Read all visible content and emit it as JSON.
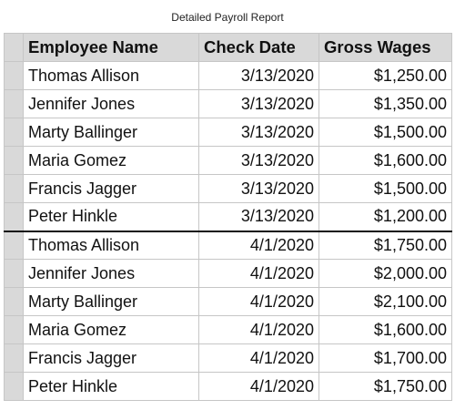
{
  "title": "Detailed Payroll Report",
  "table": {
    "headers": [
      "Employee Name",
      "Check Date",
      "Gross Wages"
    ],
    "rows": [
      [
        "Thomas Allison",
        "3/13/2020",
        "$1,250.00"
      ],
      [
        "Jennifer Jones",
        "3/13/2020",
        "$1,350.00"
      ],
      [
        "Marty Ballinger",
        "3/13/2020",
        "$1,500.00"
      ],
      [
        "Maria Gomez",
        "3/13/2020",
        "$1,600.00"
      ],
      [
        "Francis Jagger",
        "3/13/2020",
        "$1,500.00"
      ],
      [
        "Peter Hinkle",
        "3/13/2020",
        "$1,200.00"
      ],
      [
        "Thomas Allison",
        "4/1/2020",
        "$1,750.00"
      ],
      [
        "Jennifer Jones",
        "4/1/2020",
        "$2,000.00"
      ],
      [
        "Marty Ballinger",
        "4/1/2020",
        "$2,100.00"
      ],
      [
        "Maria Gomez",
        "4/1/2020",
        "$1,600.00"
      ],
      [
        "Francis Jagger",
        "4/1/2020",
        "$1,700.00"
      ],
      [
        "Peter Hinkle",
        "4/1/2020",
        "$1,750.00"
      ]
    ]
  }
}
